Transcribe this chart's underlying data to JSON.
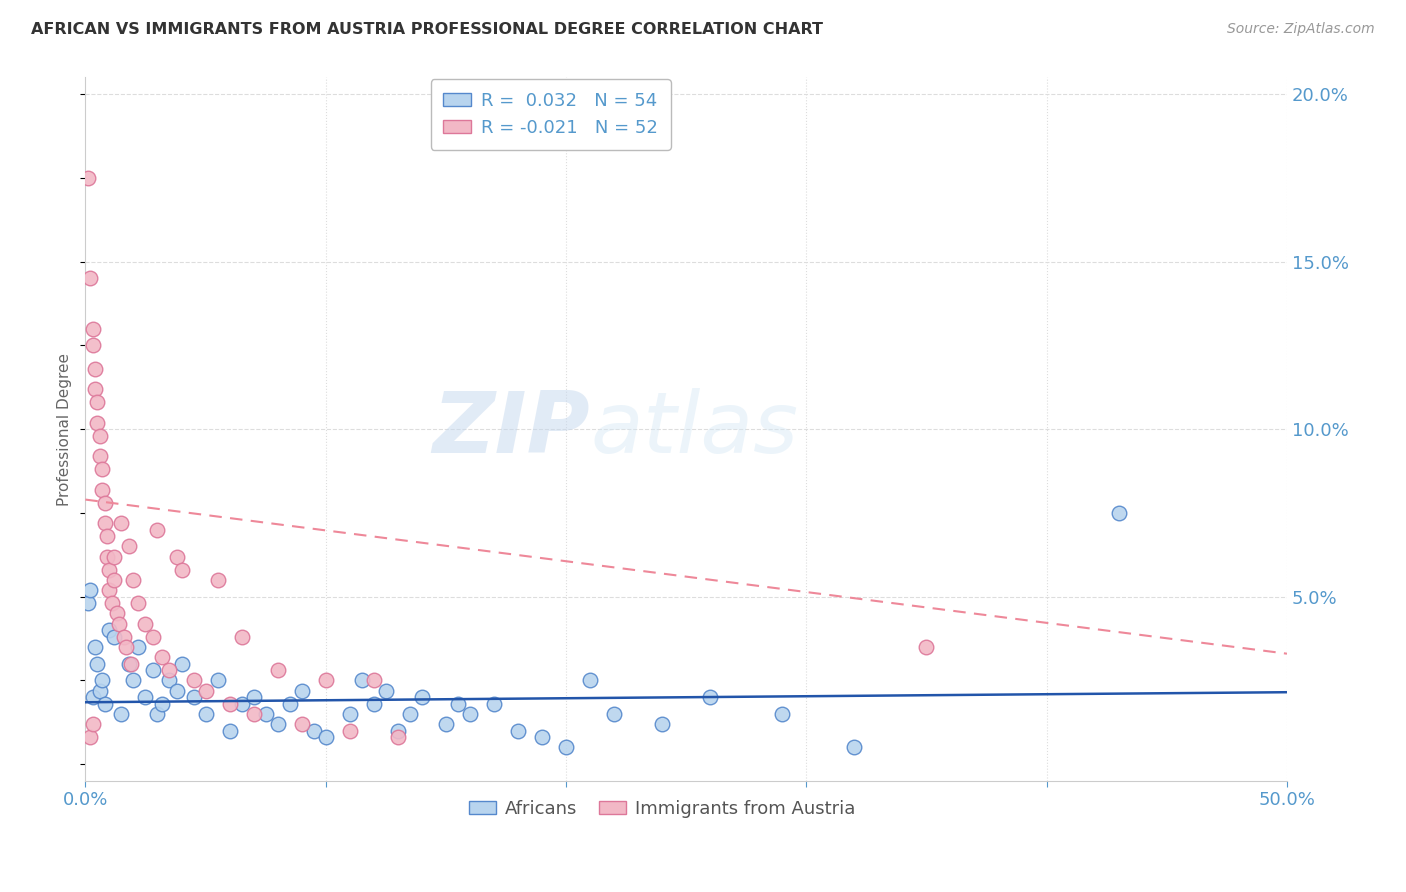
{
  "title": "AFRICAN VS IMMIGRANTS FROM AUSTRIA PROFESSIONAL DEGREE CORRELATION CHART",
  "source": "Source: ZipAtlas.com",
  "ylabel": "Professional Degree",
  "watermark_zip": "ZIP",
  "watermark_atlas": "atlas",
  "xlim": [
    0.0,
    0.5
  ],
  "ylim": [
    -0.005,
    0.205
  ],
  "xticks": [
    0.0,
    0.1,
    0.2,
    0.3,
    0.4,
    0.5
  ],
  "xtick_labels": [
    "0.0%",
    "",
    "",
    "",
    "",
    "50.0%"
  ],
  "ytick_labels_right": [
    "20.0%",
    "15.0%",
    "10.0%",
    "5.0%"
  ],
  "ytick_values_right": [
    0.2,
    0.15,
    0.1,
    0.05
  ],
  "legend_r1": "R =  0.032",
  "legend_n1": "N = 54",
  "legend_r2": "R = -0.021",
  "legend_n2": "N = 52",
  "africans_x": [
    0.001,
    0.002,
    0.003,
    0.004,
    0.005,
    0.006,
    0.007,
    0.008,
    0.01,
    0.012,
    0.015,
    0.018,
    0.02,
    0.022,
    0.025,
    0.028,
    0.03,
    0.032,
    0.035,
    0.038,
    0.04,
    0.045,
    0.05,
    0.055,
    0.06,
    0.065,
    0.07,
    0.075,
    0.08,
    0.085,
    0.09,
    0.095,
    0.1,
    0.11,
    0.115,
    0.12,
    0.125,
    0.13,
    0.135,
    0.14,
    0.15,
    0.155,
    0.16,
    0.17,
    0.18,
    0.19,
    0.2,
    0.21,
    0.22,
    0.24,
    0.26,
    0.29,
    0.32,
    0.43
  ],
  "africans_y": [
    0.048,
    0.052,
    0.02,
    0.035,
    0.03,
    0.022,
    0.025,
    0.018,
    0.04,
    0.038,
    0.015,
    0.03,
    0.025,
    0.035,
    0.02,
    0.028,
    0.015,
    0.018,
    0.025,
    0.022,
    0.03,
    0.02,
    0.015,
    0.025,
    0.01,
    0.018,
    0.02,
    0.015,
    0.012,
    0.018,
    0.022,
    0.01,
    0.008,
    0.015,
    0.025,
    0.018,
    0.022,
    0.01,
    0.015,
    0.02,
    0.012,
    0.018,
    0.015,
    0.018,
    0.01,
    0.008,
    0.005,
    0.025,
    0.015,
    0.012,
    0.02,
    0.015,
    0.005,
    0.075
  ],
  "austria_x": [
    0.001,
    0.002,
    0.003,
    0.003,
    0.004,
    0.004,
    0.005,
    0.005,
    0.006,
    0.006,
    0.007,
    0.007,
    0.008,
    0.008,
    0.009,
    0.009,
    0.01,
    0.01,
    0.011,
    0.012,
    0.012,
    0.013,
    0.014,
    0.015,
    0.016,
    0.017,
    0.018,
    0.019,
    0.02,
    0.022,
    0.025,
    0.028,
    0.03,
    0.032,
    0.035,
    0.038,
    0.04,
    0.045,
    0.05,
    0.055,
    0.06,
    0.065,
    0.07,
    0.08,
    0.09,
    0.1,
    0.11,
    0.12,
    0.13,
    0.35,
    0.002,
    0.003
  ],
  "austria_y": [
    0.175,
    0.145,
    0.125,
    0.13,
    0.118,
    0.112,
    0.108,
    0.102,
    0.098,
    0.092,
    0.088,
    0.082,
    0.078,
    0.072,
    0.068,
    0.062,
    0.058,
    0.052,
    0.048,
    0.062,
    0.055,
    0.045,
    0.042,
    0.072,
    0.038,
    0.035,
    0.065,
    0.03,
    0.055,
    0.048,
    0.042,
    0.038,
    0.07,
    0.032,
    0.028,
    0.062,
    0.058,
    0.025,
    0.022,
    0.055,
    0.018,
    0.038,
    0.015,
    0.028,
    0.012,
    0.025,
    0.01,
    0.025,
    0.008,
    0.035,
    0.008,
    0.012
  ],
  "africans_trend_x": [
    0.0,
    0.5
  ],
  "africans_trend_y": [
    0.0185,
    0.0215
  ],
  "austria_trend_x": [
    0.0,
    0.5
  ],
  "austria_trend_y": [
    0.079,
    0.033
  ],
  "scatter_color_africans": "#b8d4ee",
  "scatter_color_austria": "#f2b8c6",
  "scatter_edge_africans": "#5588cc",
  "scatter_edge_austria": "#dd7799",
  "trend_color_africans": "#2255aa",
  "trend_color_austria": "#ee8899",
  "grid_color": "#dddddd",
  "axis_color": "#5599cc",
  "title_color": "#333333",
  "source_color": "#999999",
  "ylabel_color": "#666666",
  "background_color": "#ffffff"
}
